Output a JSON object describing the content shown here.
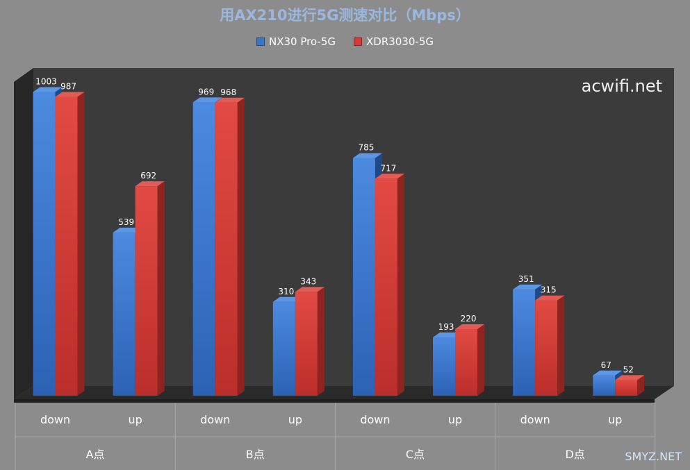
{
  "chart_data": {
    "type": "bar",
    "title": "用AX210进行5G测速对比（Mbps）",
    "groups": [
      {
        "label": "A点",
        "categories": [
          "down",
          "up"
        ]
      },
      {
        "label": "B点",
        "categories": [
          "down",
          "up"
        ]
      },
      {
        "label": "C点",
        "categories": [
          "down",
          "up"
        ]
      },
      {
        "label": "D点",
        "categories": [
          "down",
          "up"
        ]
      }
    ],
    "categories": [
      "down",
      "up",
      "down",
      "up",
      "down",
      "up",
      "down",
      "up"
    ],
    "series": [
      {
        "name": "NX30 Pro-5G",
        "color": "#3a74c6",
        "values": [
          1003,
          539,
          969,
          310,
          785,
          193,
          351,
          67
        ]
      },
      {
        "name": "XDR3030-5G",
        "color": "#d63a35",
        "values": [
          987,
          692,
          968,
          343,
          717,
          220,
          315,
          52
        ]
      }
    ],
    "ylim": [
      0,
      1050
    ],
    "legend_position": "top",
    "grid": false,
    "watermark": "acwifi.net"
  },
  "corner_mark": "SMYZ.NET"
}
